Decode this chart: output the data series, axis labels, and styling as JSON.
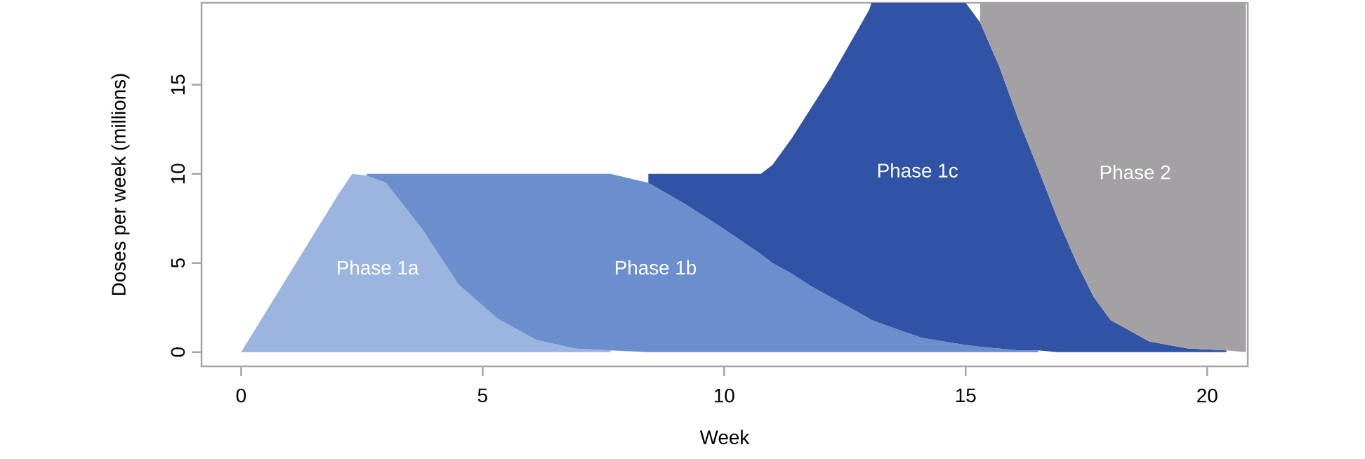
{
  "chart_data": {
    "type": "area",
    "stacked": true,
    "xlabel": "Week",
    "ylabel": "Doses per week (millions)",
    "x": [
      0,
      1,
      2,
      2.3,
      2.6,
      3,
      3.75,
      4.5,
      5.3,
      6.1,
      6.9,
      7.65,
      8.43,
      9.2,
      10,
      10.76,
      11,
      11.4,
      11.8,
      12.2,
      12.6,
      13,
      13.05,
      13.35,
      14.1,
      15,
      15.3,
      15.7,
      16.1,
      16.5,
      16.9,
      17.3,
      17.65,
      18,
      18.8,
      19.6,
      20.4,
      20.8
    ],
    "series": [
      {
        "name": "Phase 1a",
        "color": "#9bb4e0",
        "values": [
          0,
          4.4,
          8.8,
          10,
          9.9,
          9.5,
          6.9,
          3.8,
          1.9,
          0.7,
          0.2,
          0.1,
          null,
          null,
          null,
          null,
          null,
          null,
          null,
          null,
          null,
          null,
          null,
          null,
          null,
          null,
          null,
          null,
          null,
          null,
          null,
          null,
          null,
          null,
          null,
          null,
          null,
          null
        ]
      },
      {
        "name": "Phase 1b",
        "color": "#6b8fcc",
        "values": [
          null,
          null,
          null,
          null,
          0.1,
          0.5,
          3.1,
          6.2,
          8.1,
          9.3,
          9.8,
          9.9,
          9.5,
          8.3,
          6.9,
          5.5,
          5.0,
          4.4,
          3.7,
          3.1,
          2.5,
          1.9,
          1.8,
          1.5,
          0.8,
          0.4,
          0.3,
          0.2,
          0.1,
          0.1,
          null,
          null,
          null,
          null,
          null,
          null,
          null,
          null
        ]
      },
      {
        "name": "Phase 1c",
        "color": "#3153a5",
        "values": [
          null,
          null,
          null,
          null,
          null,
          null,
          null,
          null,
          null,
          null,
          null,
          null,
          0.5,
          1.7,
          3.1,
          4.5,
          5.5,
          7.6,
          10.0,
          12.3,
          14.8,
          17.3,
          17.8,
          18.1,
          18.8,
          19.2,
          18.2,
          15.8,
          12.9,
          10.2,
          7.5,
          5.0,
          3.1,
          1.8,
          0.6,
          0.2,
          0.1,
          null
        ]
      },
      {
        "name": "Phase 2",
        "color": "#a3a1a3",
        "values": [
          null,
          null,
          null,
          null,
          null,
          null,
          null,
          null,
          null,
          null,
          null,
          null,
          null,
          null,
          null,
          null,
          null,
          null,
          null,
          null,
          null,
          null,
          null,
          null,
          null,
          null,
          1.1,
          3.6,
          6.6,
          9.3,
          12.1,
          14.6,
          16.5,
          17.8,
          19.0,
          19.4,
          19.5,
          19.6
        ]
      }
    ],
    "xlim": [
      -0.82,
      20.84
    ],
    "ylim": [
      -0.8,
      19.6
    ],
    "xticks": [
      0,
      5,
      10,
      15,
      20
    ],
    "yticks": [
      0,
      5,
      10,
      15
    ]
  }
}
